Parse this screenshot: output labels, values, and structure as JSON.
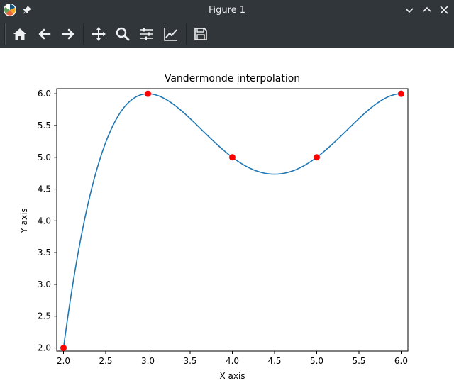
{
  "window": {
    "title": "Figure 1",
    "background": "#31363b",
    "app_icon": "matplotlib-logo-icon",
    "pin_icon": "pin-icon",
    "buttons": [
      "chevron-down-icon",
      "chevron-up-icon",
      "close-icon"
    ]
  },
  "toolbar": {
    "tools": [
      {
        "name": "home-icon"
      },
      {
        "name": "arrow-left-icon"
      },
      {
        "name": "arrow-right-icon"
      },
      {
        "name": "move-icon"
      },
      {
        "name": "zoom-icon"
      },
      {
        "name": "sliders-icon"
      },
      {
        "name": "line-chart-icon"
      },
      {
        "name": "save-icon"
      }
    ]
  },
  "chart_data": {
    "type": "line",
    "title": "Vandermonde interpolation",
    "xlabel": "X axis",
    "ylabel": "Y axis",
    "xlim": [
      1.92,
      6.08
    ],
    "ylim": [
      1.95,
      6.08
    ],
    "x_ticks": [
      "2.0",
      "2.5",
      "3.0",
      "3.5",
      "4.0",
      "4.5",
      "5.0",
      "5.5",
      "6.0"
    ],
    "y_ticks": [
      "2.0",
      "2.5",
      "3.0",
      "3.5",
      "4.0",
      "4.5",
      "5.0",
      "5.5",
      "6.0"
    ],
    "grid": false,
    "series": [
      {
        "kind": "curve",
        "color": "#1f77b4",
        "description_points_x": [
          2,
          3,
          4,
          5,
          6
        ],
        "description_points_y": [
          2,
          6,
          5,
          5,
          6
        ]
      },
      {
        "kind": "points",
        "color": "#ff0000",
        "x": [
          2,
          3,
          4,
          5,
          6
        ],
        "y": [
          2,
          6,
          5,
          5,
          6
        ]
      }
    ]
  }
}
